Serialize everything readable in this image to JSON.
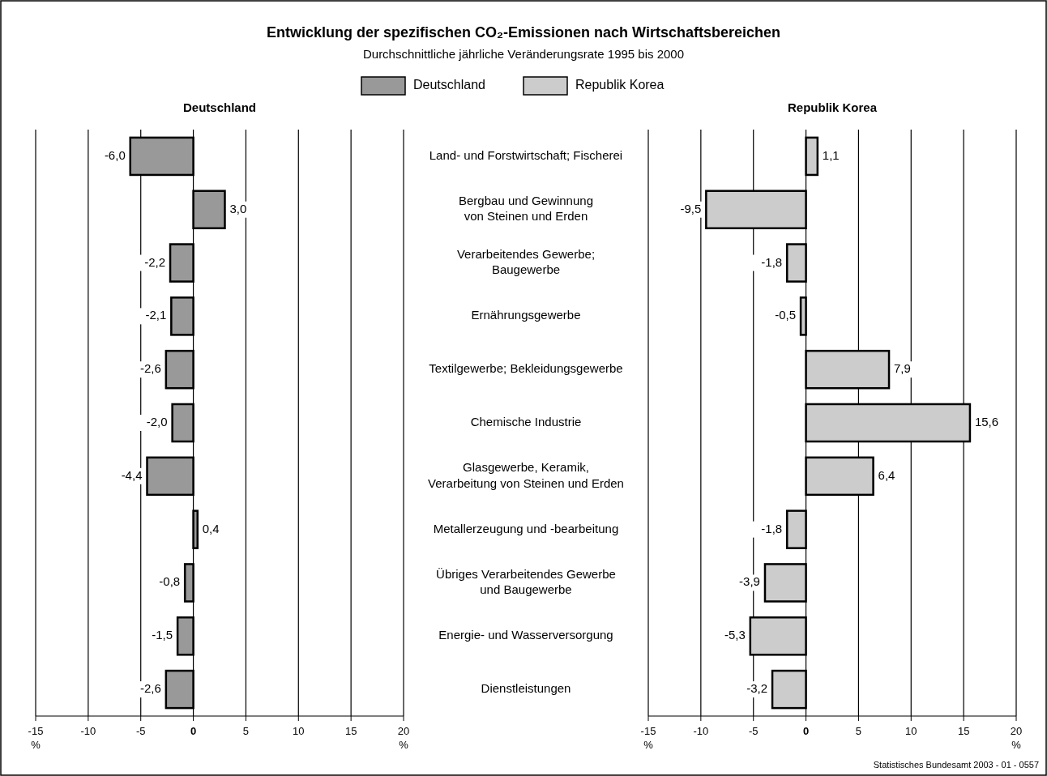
{
  "chart_data": [
    {
      "type": "bar",
      "orientation": "horizontal",
      "title": "Entwicklung der spezifischen CO₂-Emissionen nach Wirtschaftsbereichen",
      "subtitle": "Durchschnittliche jährliche Veränderungsrate 1995 bis 2000",
      "xlabel": "%",
      "categories": [
        "Land- und Forstwirtschaft; Fischerei",
        "Bergbau und Gewinnung\nvon Steinen und Erden",
        "Verarbeitendes Gewerbe;\nBaugewerbe",
        "Ernährungsgewerbe",
        "Textilgewerbe; Bekleidungsgewerbe",
        "Chemische Industrie",
        "Glasgewerbe, Keramik,\nVerarbeitung von Steinen und Erden",
        "Metallerzeugung und -bearbeitung",
        "Übriges Verarbeitendes Gewerbe\nund Baugewerbe",
        "Energie- und Wasserversorgung",
        "Dienstleistungen"
      ],
      "series": [
        {
          "name": "Deutschland",
          "color": "#999999",
          "values": [
            -6.0,
            3.0,
            -2.2,
            -2.1,
            -2.6,
            -2.0,
            -4.4,
            0.4,
            -0.8,
            -1.5,
            -2.6
          ],
          "value_labels": [
            "-6,0",
            "3,0",
            "-2,2",
            "-2,1",
            "-2,6",
            "-2,0",
            "-4,4",
            "0,4",
            "-0,8",
            "-1,5",
            "-2,6"
          ]
        }
      ],
      "xlim": [
        -15,
        20
      ],
      "xticks": [
        -15,
        -10,
        -5,
        0,
        5,
        10,
        15,
        20
      ],
      "grid": "x",
      "legend": "top"
    },
    {
      "type": "bar",
      "orientation": "horizontal",
      "xlabel": "%",
      "categories": [
        null,
        null,
        null,
        null,
        null,
        null,
        null,
        null,
        null,
        null,
        null
      ],
      "series": [
        {
          "name": "Republik Korea",
          "color": "#cccccc",
          "values": [
            1.1,
            -9.5,
            -1.8,
            -0.5,
            7.9,
            15.6,
            6.4,
            -1.8,
            -3.9,
            -5.3,
            -3.2
          ],
          "value_labels": [
            "1,1",
            "-9,5",
            "-1,8",
            "-0,5",
            "7,9",
            "15,6",
            "6,4",
            "-1,8",
            "-3,9",
            "-5,3",
            "-3,2"
          ]
        }
      ],
      "xlim": [
        -15,
        20
      ],
      "xticks": [
        -15,
        -10,
        -5,
        0,
        5,
        10,
        15,
        20
      ],
      "grid": "x",
      "legend": "top",
      "tick_labels": "x",
      "annotations": [
        "Statistisches Bundesamt 2003 - 01 - 0557"
      ]
    }
  ]
}
